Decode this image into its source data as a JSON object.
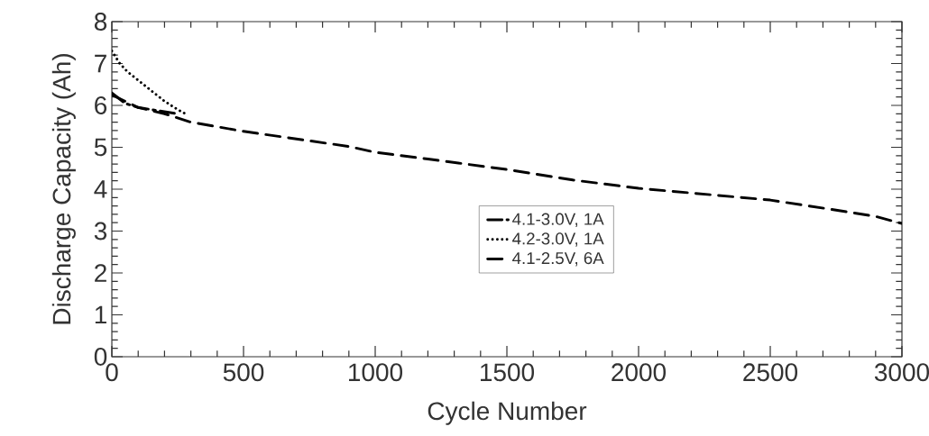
{
  "chart_data": {
    "type": "line",
    "xlabel": "Cycle Number",
    "ylabel": "Discharge Capacity (Ah)",
    "xlim": [
      0,
      3000
    ],
    "ylim": [
      0,
      8
    ],
    "xticks": [
      0,
      500,
      1000,
      1500,
      2000,
      2500,
      3000
    ],
    "yticks": [
      0,
      1,
      2,
      3,
      4,
      5,
      6,
      7,
      8
    ],
    "grid": false,
    "legend": "center",
    "marker": "none",
    "series": [
      {
        "name": "4.1-3.0V, 1A",
        "color": "#000000",
        "line_style": "dashdotted",
        "x": [
          0,
          50,
          100,
          150,
          200,
          250
        ],
        "values": [
          6.3,
          6.05,
          5.95,
          5.9,
          5.85,
          5.8
        ]
      },
      {
        "name": "4.2-3.0V, 1A",
        "color": "#000000",
        "line_style": "dotted",
        "x": [
          0,
          30,
          60,
          100,
          150,
          200,
          250,
          280
        ],
        "values": [
          7.3,
          7.0,
          6.8,
          6.6,
          6.35,
          6.1,
          5.9,
          5.8
        ]
      },
      {
        "name": "4.1-2.5V, 6A",
        "color": "#000000",
        "line_style": "dashed",
        "x": [
          0,
          100,
          200,
          300,
          500,
          700,
          900,
          1000,
          1200,
          1500,
          1750,
          2000,
          2250,
          2500,
          2750,
          2900,
          3000
        ],
        "values": [
          6.25,
          5.95,
          5.8,
          5.6,
          5.38,
          5.2,
          5.02,
          4.88,
          4.72,
          4.47,
          4.22,
          4.02,
          3.88,
          3.74,
          3.5,
          3.35,
          3.18
        ]
      }
    ]
  }
}
